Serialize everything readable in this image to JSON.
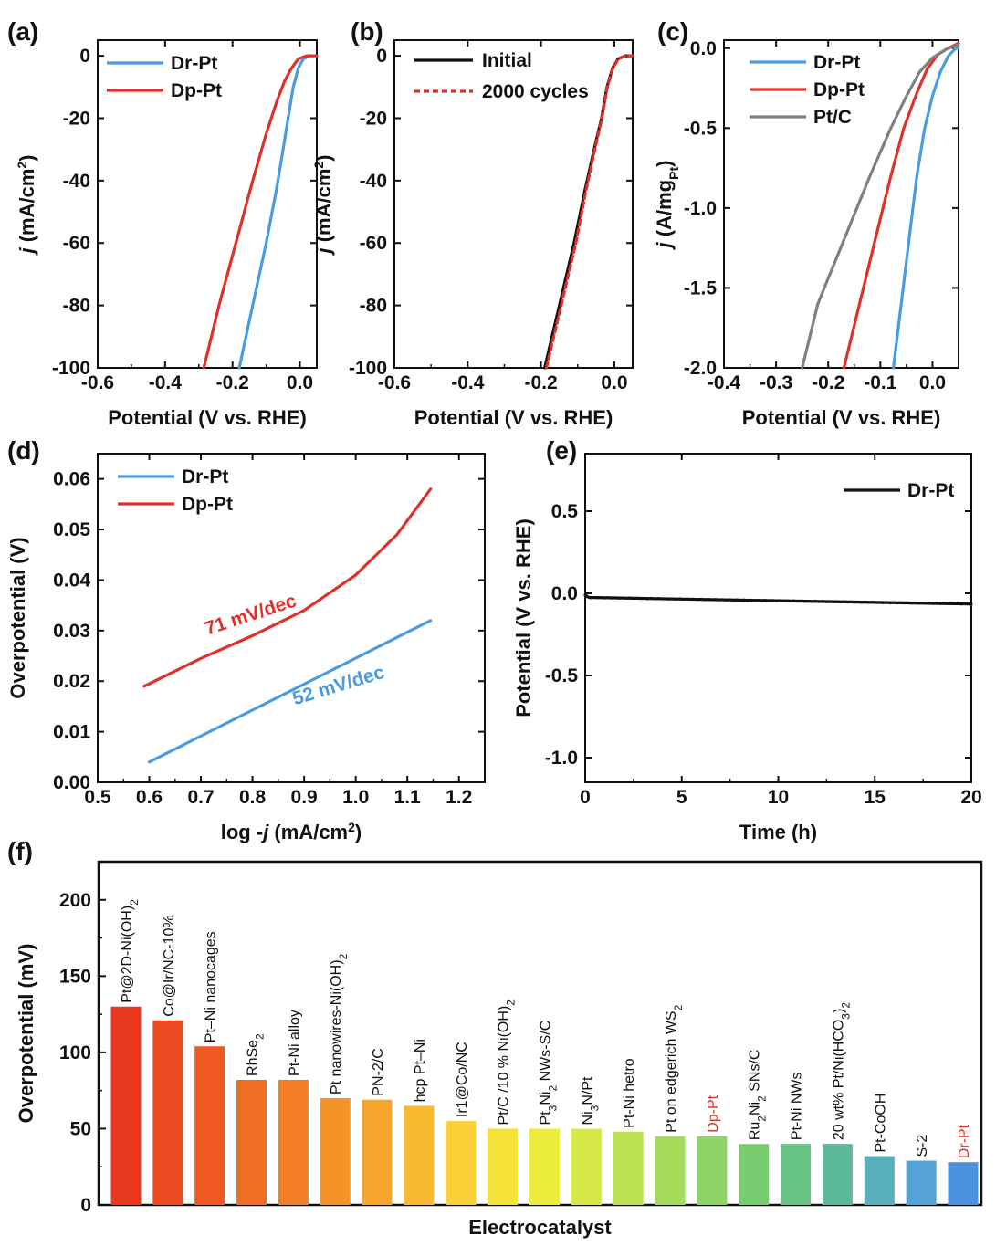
{
  "figure": {
    "panels": [
      "(a)",
      "(b)",
      "(c)",
      "(d)",
      "(e)",
      "(f)"
    ]
  },
  "chart_data": [
    {
      "id": "a",
      "type": "line",
      "panel_label": "(a)",
      "xlabel": "Potential (V vs. RHE)",
      "ylabel_italic": "j",
      "ylabel_rest": " (mA/cm²)",
      "xlim": [
        -0.6,
        0.05
      ],
      "ylim": [
        -100,
        5
      ],
      "xticks": [
        -0.6,
        -0.4,
        -0.2,
        0.0
      ],
      "xtick_labels": [
        "-0.6",
        "-0.4",
        "-0.2",
        "0.0"
      ],
      "yticks": [
        0,
        -20,
        -40,
        -60,
        -80,
        -100
      ],
      "ytick_labels": [
        "0",
        "-20",
        "-40",
        "-60",
        "-80",
        "-100"
      ],
      "series": [
        {
          "name": "Dr-Pt",
          "color": "#4a9be0",
          "x": [
            -0.18,
            -0.14,
            -0.1,
            -0.07,
            -0.05,
            -0.035,
            -0.02,
            -0.005,
            0.01,
            0.03,
            0.05
          ],
          "y": [
            -100,
            -80,
            -60,
            -43,
            -30,
            -20,
            -10,
            -4,
            -1,
            0,
            0
          ]
        },
        {
          "name": "Dp-Pt",
          "color": "#e0302a",
          "x": [
            -0.285,
            -0.24,
            -0.19,
            -0.14,
            -0.1,
            -0.07,
            -0.045,
            -0.025,
            -0.005,
            0.02,
            0.05
          ],
          "y": [
            -100,
            -80,
            -60,
            -40,
            -25,
            -15,
            -8,
            -4,
            -1,
            0,
            0
          ]
        }
      ]
    },
    {
      "id": "b",
      "type": "line",
      "panel_label": "(b)",
      "xlabel": "Potential (V vs. RHE)",
      "ylabel_italic": "j",
      "ylabel_rest": " (mA/cm²)",
      "xlim": [
        -0.6,
        0.05
      ],
      "ylim": [
        -100,
        5
      ],
      "xticks": [
        -0.6,
        -0.4,
        -0.2,
        0.0
      ],
      "xtick_labels": [
        "-0.6",
        "-0.4",
        "-0.2",
        "0.0"
      ],
      "yticks": [
        0,
        -20,
        -40,
        -60,
        -80,
        -100
      ],
      "ytick_labels": [
        "0",
        "-20",
        "-40",
        "-60",
        "-80",
        "-100"
      ],
      "series": [
        {
          "name": "Initial",
          "color": "#111111",
          "dash": false,
          "x": [
            -0.19,
            -0.15,
            -0.11,
            -0.08,
            -0.055,
            -0.035,
            -0.02,
            -0.005,
            0.01,
            0.03,
            0.05
          ],
          "y": [
            -100,
            -80,
            -60,
            -43,
            -30,
            -20,
            -10,
            -4,
            -1,
            0,
            0
          ]
        },
        {
          "name": "2000 cycles",
          "color": "#e0302a",
          "dash": true,
          "x": [
            -0.185,
            -0.145,
            -0.105,
            -0.077,
            -0.053,
            -0.034,
            -0.019,
            -0.004,
            0.011,
            0.03,
            0.05
          ],
          "y": [
            -100,
            -80,
            -60,
            -43,
            -30,
            -20,
            -10,
            -4,
            -1,
            0,
            0
          ]
        }
      ]
    },
    {
      "id": "c",
      "type": "line",
      "panel_label": "(c)",
      "xlabel": "Potential (V vs. RHE)",
      "ylabel_italic": "j",
      "ylabel_rest": " (A/mg",
      "ylabel_sub": "Pt",
      "ylabel_end": ")",
      "xlim": [
        -0.4,
        0.05
      ],
      "ylim": [
        -2.0,
        0.05
      ],
      "xticks": [
        -0.4,
        -0.3,
        -0.2,
        -0.1,
        0.0
      ],
      "xtick_labels": [
        "-0.4",
        "-0.3",
        "-0.2",
        "-0.1",
        "0.0"
      ],
      "yticks": [
        0.0,
        -0.5,
        -1.0,
        -1.5,
        -2.0
      ],
      "ytick_labels": [
        "0.0",
        "-0.5",
        "-1.0",
        "-1.5",
        "-2.0"
      ],
      "series": [
        {
          "name": "Dr-Pt",
          "color": "#4a9be0",
          "x": [
            -0.075,
            -0.06,
            -0.045,
            -0.03,
            -0.015,
            0.0,
            0.015,
            0.03,
            0.045,
            0.05
          ],
          "y": [
            -2.0,
            -1.6,
            -1.2,
            -0.8,
            -0.5,
            -0.3,
            -0.15,
            -0.05,
            0.0,
            0.0
          ]
        },
        {
          "name": "Dp-Pt",
          "color": "#e0302a",
          "x": [
            -0.17,
            -0.14,
            -0.11,
            -0.08,
            -0.055,
            -0.03,
            -0.01,
            0.01,
            0.03,
            0.05
          ],
          "y": [
            -2.0,
            -1.6,
            -1.2,
            -0.8,
            -0.5,
            -0.28,
            -0.13,
            -0.04,
            0.0,
            0.03
          ]
        },
        {
          "name": "Pt/C",
          "color": "#808080",
          "x": [
            -0.25,
            -0.22,
            -0.17,
            -0.12,
            -0.08,
            -0.05,
            -0.025,
            0.0,
            0.03,
            0.05
          ],
          "y": [
            -2.0,
            -1.6,
            -1.2,
            -0.8,
            -0.5,
            -0.3,
            -0.15,
            -0.06,
            0.0,
            0.02
          ]
        }
      ]
    },
    {
      "id": "d",
      "type": "line",
      "panel_label": "(d)",
      "xlabel": "log -",
      "xlabel_italic": "j",
      "xlabel_rest": " (mA/cm²)",
      "ylabel": "Overpotential (V)",
      "xlim": [
        0.5,
        1.25
      ],
      "ylim": [
        0.0,
        0.065
      ],
      "xticks": [
        0.5,
        0.6,
        0.7,
        0.8,
        0.9,
        1.0,
        1.1,
        1.2
      ],
      "xtick_labels": [
        "0.5",
        "0.6",
        "0.7",
        "0.8",
        "0.9",
        "1.0",
        "1.1",
        "1.2"
      ],
      "yticks": [
        0.0,
        0.01,
        0.02,
        0.03,
        0.04,
        0.05,
        0.06
      ],
      "ytick_labels": [
        "0.00",
        "0.01",
        "0.02",
        "0.03",
        "0.04",
        "0.05",
        "0.06"
      ],
      "series": [
        {
          "name": "Dr-Pt",
          "color": "#4a9be0",
          "x": [
            0.6,
            1.145
          ],
          "y": [
            0.004,
            0.032
          ]
        },
        {
          "name": "Dp-Pt",
          "color": "#e0302a",
          "x": [
            0.59,
            0.7,
            0.8,
            0.9,
            1.0,
            1.08,
            1.145
          ],
          "y": [
            0.019,
            0.0245,
            0.029,
            0.034,
            0.041,
            0.049,
            0.058
          ]
        }
      ],
      "annotations": [
        {
          "text": "71 mV/dec",
          "color": "#e0302a",
          "x": 0.8,
          "y": 0.032,
          "angle": -18
        },
        {
          "text": "52 mV/dec",
          "color": "#4a9be0",
          "x": 0.97,
          "y": 0.018,
          "angle": -17
        }
      ]
    },
    {
      "id": "e",
      "type": "line",
      "panel_label": "(e)",
      "xlabel": "Time (h)",
      "ylabel": "Potential (V vs. RHE)",
      "xlim": [
        0,
        20
      ],
      "ylim": [
        -1.15,
        0.85
      ],
      "xticks": [
        0,
        5,
        10,
        15,
        20
      ],
      "xtick_labels": [
        "0",
        "5",
        "10",
        "15",
        "20"
      ],
      "yticks": [
        0.5,
        0.0,
        -0.5,
        -1.0
      ],
      "ytick_labels": [
        "0.5",
        "0.0",
        "-0.5",
        "-1.0"
      ],
      "series": [
        {
          "name": "Dr-Pt",
          "color": "#111111",
          "x": [
            0,
            0.2,
            5,
            10,
            15,
            20
          ],
          "y": [
            -0.01,
            -0.025,
            -0.035,
            -0.045,
            -0.055,
            -0.065
          ]
        }
      ]
    },
    {
      "id": "f",
      "type": "bar",
      "panel_label": "(f)",
      "xlabel": "Electrocatalyst",
      "ylabel": "Overpotential (mV)",
      "ylim": [
        0,
        225
      ],
      "yticks": [
        0,
        50,
        100,
        150,
        200
      ],
      "ytick_labels": [
        "0",
        "50",
        "100",
        "150",
        "200"
      ],
      "categories": [
        {
          "label": "Pt@2D-Ni(OH)",
          "sub": "2",
          "after": ""
        },
        {
          "label": "Co@Ir/NC-10%",
          "sub": "",
          "after": ""
        },
        {
          "label": "Pt–Ni nanocages",
          "sub": "",
          "after": ""
        },
        {
          "label": "RhSe",
          "sub": "2",
          "after": ""
        },
        {
          "label": "Pt-Ni alloy",
          "sub": "",
          "after": ""
        },
        {
          "label": "Pt nanowires-Ni(OH)",
          "sub": "2",
          "after": ""
        },
        {
          "label": "PN-2/C",
          "sub": "",
          "after": ""
        },
        {
          "label": "hcp Pt–Ni",
          "sub": "",
          "after": ""
        },
        {
          "label": "Ir1@Co/NC",
          "sub": "",
          "after": ""
        },
        {
          "label": "Pt/C /10 % Ni(OH)",
          "sub": "2",
          "after": ""
        },
        {
          "label": "Pt",
          "sub": "3",
          "after": "Ni",
          "sub2": "2",
          "after2": " NWs-S/C"
        },
        {
          "label": "Ni",
          "sub": "3",
          "after": "N/Pt"
        },
        {
          "label": "Pt-Ni hetro",
          "sub": "",
          "after": ""
        },
        {
          "label": "Pt on edgerich WS",
          "sub": "2",
          "after": ""
        },
        {
          "label": "Dp-Pt",
          "sub": "",
          "after": "",
          "highlight": true
        },
        {
          "label": "Ru",
          "sub": "2",
          "after": "Ni",
          "sub2": "2",
          "after2": " SNs/C"
        },
        {
          "label": "Pt-Ni NWs",
          "sub": "",
          "after": ""
        },
        {
          "label": "20 wt% Pt/Ni(HCO",
          "sub": "3",
          "after": ")",
          "sub2": "2",
          "after2": ""
        },
        {
          "label": "Pt-CoOH",
          "sub": "",
          "after": ""
        },
        {
          "label": "S-2",
          "sub": "",
          "after": ""
        },
        {
          "label": "Dr-Pt",
          "sub": "",
          "after": "",
          "highlight": true
        }
      ],
      "values": [
        130,
        121,
        104,
        82,
        82,
        70,
        69,
        65,
        55,
        50,
        50,
        50,
        48,
        45,
        45,
        40,
        40,
        40,
        32,
        29,
        28
      ],
      "colors": [
        "#e8391e",
        "#ec4a20",
        "#ee5a22",
        "#f06e24",
        "#f27f26",
        "#f49428",
        "#f6a62c",
        "#f8ba30",
        "#fad036",
        "#f6e33a",
        "#ecec3c",
        "#d7e948",
        "#bde352",
        "#a5dc5c",
        "#8cd566",
        "#78cd70",
        "#66c383",
        "#5cba99",
        "#5aafbc",
        "#55a2d6",
        "#4b91de"
      ],
      "highlight_color": "#e0302a"
    }
  ]
}
